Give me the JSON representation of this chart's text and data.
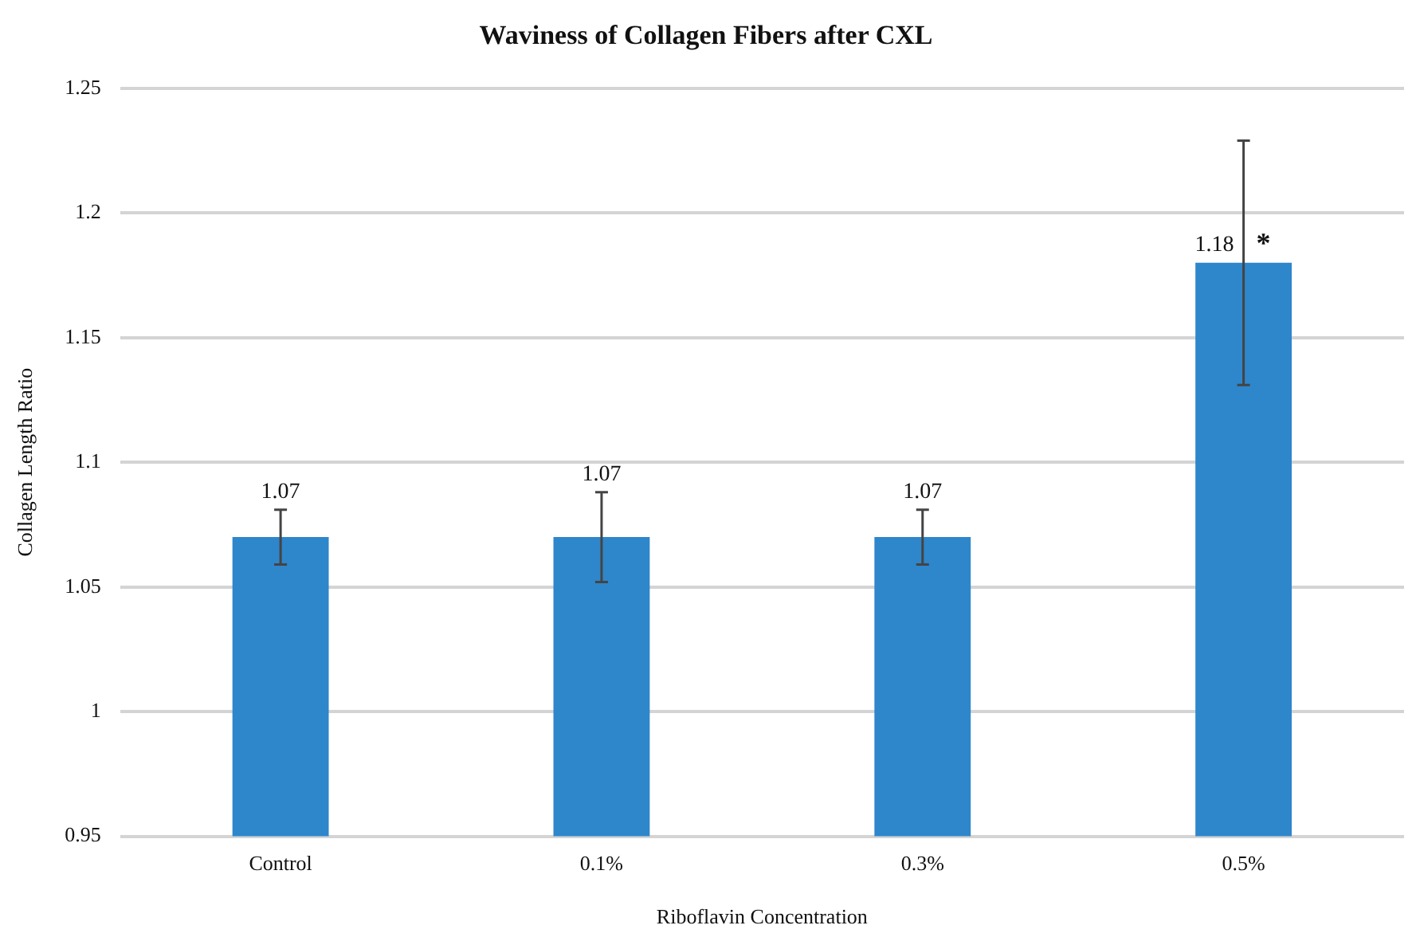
{
  "chart_data": {
    "type": "bar",
    "title": "Waviness of Collagen Fibers after CXL",
    "xlabel": "Riboflavin Concentration",
    "ylabel": "Collagen Length Ratio",
    "categories": [
      "Control",
      "0.1%",
      "0.3%",
      "0.5%"
    ],
    "values": [
      1.07,
      1.07,
      1.07,
      1.18
    ],
    "errors": [
      0.011,
      0.018,
      0.011,
      0.049
    ],
    "color": "#2e86cb",
    "ylim": [
      0.95,
      1.25
    ],
    "yticks": [
      0.95,
      1,
      1.05,
      1.1,
      1.15,
      1.2,
      1.25
    ],
    "grid": "y",
    "data_labels": true,
    "annotations": [
      "*"
    ]
  }
}
